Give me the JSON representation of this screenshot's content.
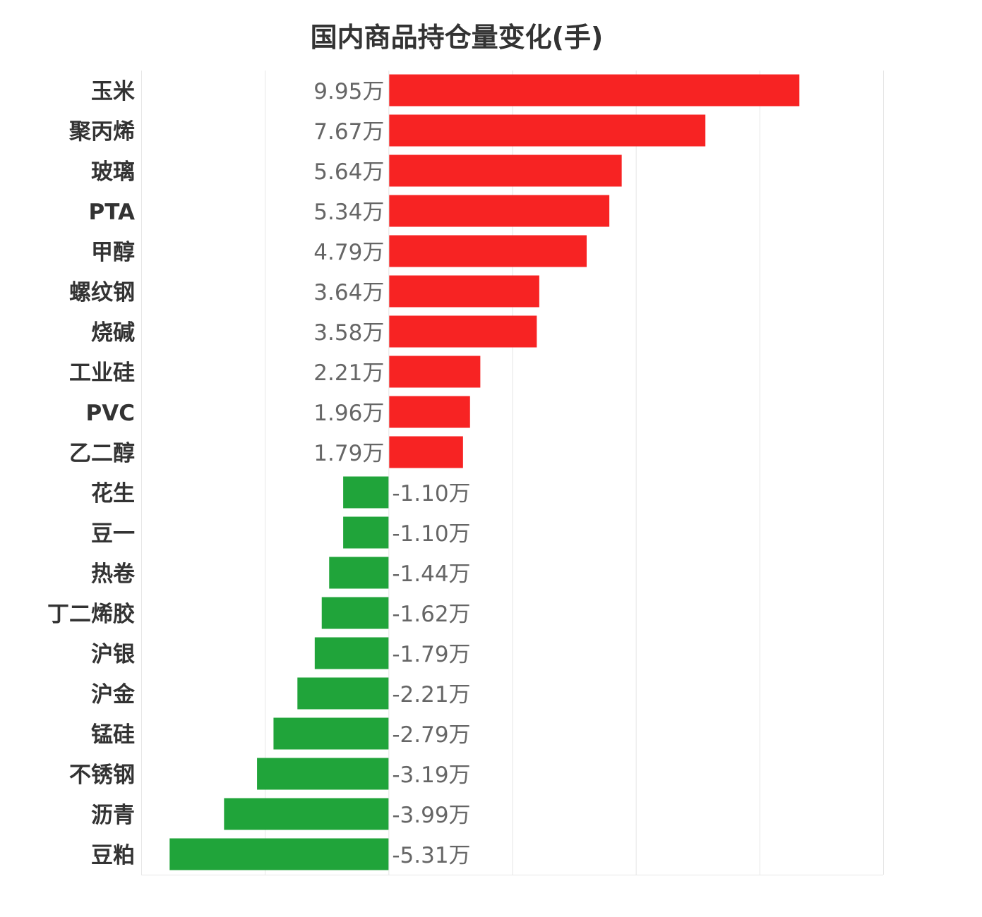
{
  "chart_data": {
    "type": "bar",
    "orientation": "horizontal",
    "title": "国内商品持仓量变化(手)",
    "unit_suffix": "万",
    "categories": [
      "玉米",
      "聚丙烯",
      "玻璃",
      "PTA",
      "甲醇",
      "螺纹钢",
      "烧碱",
      "工业硅",
      "PVC",
      "乙二醇",
      "花生",
      "豆一",
      "热卷",
      "丁二烯胶",
      "沪银",
      "沪金",
      "锰硅",
      "不锈钢",
      "沥青",
      "豆粕"
    ],
    "values": [
      9.95,
      7.67,
      5.64,
      5.34,
      4.79,
      3.64,
      3.58,
      2.21,
      1.96,
      1.79,
      -1.1,
      -1.1,
      -1.44,
      -1.62,
      -1.79,
      -2.21,
      -2.79,
      -3.19,
      -3.99,
      -5.31
    ],
    "labels": [
      "9.95万",
      "7.67万",
      "5.64万",
      "5.34万",
      "4.79万",
      "3.64万",
      "3.58万",
      "2.21万",
      "1.96万",
      "1.79万",
      "-1.10万",
      "-1.10万",
      "-1.44万",
      "-1.62万",
      "-1.79万",
      "-2.21万",
      "-2.79万",
      "-3.19万",
      "-3.99万",
      "-5.31万"
    ],
    "xlim": [
      -6,
      12
    ],
    "grid_step": 3,
    "grid": true,
    "colors": {
      "positive": "#f72323",
      "negative": "#20a43a",
      "grid": "#e6e6e6",
      "label": "#666666",
      "category": "#333333"
    }
  }
}
